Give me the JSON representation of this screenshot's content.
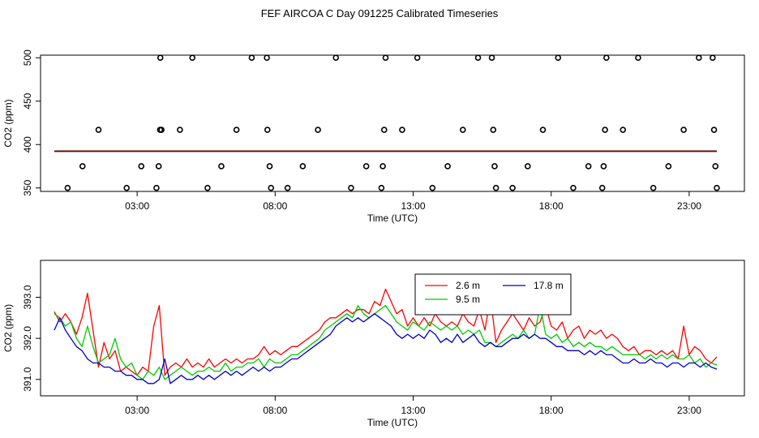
{
  "title": "FEF AIRCOA C  Day 091225  Calibrated Timeseries",
  "chart_data": [
    {
      "type": "scatter",
      "name": "top-panel",
      "xlabel": "Time (UTC)",
      "ylabel": "CO2 (ppm)",
      "xlim": [
        -0.5,
        25.0
      ],
      "ylim": [
        346,
        503
      ],
      "xticks": [
        3,
        8,
        13,
        18,
        23
      ],
      "xtick_labels": [
        "03:00",
        "08:00",
        "13:00",
        "18:00",
        "23:00"
      ],
      "yticks": [
        350,
        400,
        450,
        500
      ],
      "ytick_labels": [
        "350",
        "400",
        "450",
        "500"
      ],
      "points_x": [
        0.48,
        1.02,
        1.6,
        2.62,
        3.15,
        3.7,
        3.78,
        3.83,
        3.84,
        3.88,
        4.55,
        5.0,
        5.55,
        6.05,
        6.6,
        7.15,
        7.7,
        7.72,
        7.8,
        7.85,
        8.45,
        9.0,
        9.55,
        10.2,
        10.75,
        11.3,
        11.85,
        11.9,
        11.95,
        12.0,
        12.6,
        13.15,
        13.7,
        14.25,
        14.8,
        15.35,
        15.85,
        15.9,
        15.95,
        16.0,
        16.6,
        17.15,
        17.7,
        18.25,
        18.8,
        19.35,
        19.85,
        19.9,
        19.95,
        20.0,
        20.6,
        21.15,
        21.7,
        22.25,
        22.8,
        23.35,
        23.85,
        23.9,
        23.95,
        24.0
      ],
      "points_y": [
        350,
        375,
        417,
        350,
        375,
        350,
        375,
        417,
        500,
        417,
        417,
        500,
        350,
        375,
        417,
        500,
        500,
        417,
        375,
        350,
        350,
        375,
        417,
        500,
        350,
        375,
        350,
        375,
        417,
        500,
        417,
        500,
        350,
        375,
        417,
        500,
        500,
        417,
        375,
        350,
        350,
        375,
        417,
        500,
        350,
        375,
        350,
        375,
        417,
        500,
        417,
        500,
        350,
        375,
        417,
        500,
        500,
        417,
        375,
        350
      ],
      "series": [
        {
          "name": "2.6 m",
          "color": "#ff0000",
          "value": 392.8
        },
        {
          "name": "9.5 m",
          "color": "#00cc00",
          "value": 392.4
        },
        {
          "name": "17.8 m",
          "color": "#0000cc",
          "value": 392.0
        }
      ],
      "line_x_range": [
        0.0,
        24.0
      ]
    },
    {
      "type": "line",
      "name": "bottom-panel",
      "xlabel": "Time (UTC)",
      "ylabel": "CO2 (ppm)",
      "xlim": [
        -0.5,
        25.0
      ],
      "ylim": [
        390.6,
        393.9
      ],
      "xticks": [
        3,
        8,
        13,
        18,
        23
      ],
      "xtick_labels": [
        "03:00",
        "08:00",
        "13:00",
        "18:00",
        "23:00"
      ],
      "yticks": [
        391.0,
        392.0,
        393.0
      ],
      "ytick_labels": [
        "391.0",
        "392.0",
        "393.0"
      ],
      "legend": {
        "position": "top-center",
        "entries": [
          {
            "label": "2.6 m",
            "color": "#ff0000"
          },
          {
            "label": "9.5 m",
            "color": "#00cc00"
          },
          {
            "label": "17.8 m",
            "color": "#0000cc"
          }
        ]
      },
      "x": [
        0.0,
        0.2,
        0.4,
        0.6,
        0.8,
        1.0,
        1.2,
        1.4,
        1.6,
        1.8,
        2.0,
        2.2,
        2.4,
        2.6,
        2.8,
        3.0,
        3.2,
        3.4,
        3.6,
        3.8,
        4.0,
        4.2,
        4.4,
        4.6,
        4.8,
        5.0,
        5.2,
        5.4,
        5.6,
        5.8,
        6.0,
        6.2,
        6.4,
        6.6,
        6.8,
        7.0,
        7.2,
        7.4,
        7.6,
        7.8,
        8.0,
        8.2,
        8.4,
        8.6,
        8.8,
        9.0,
        9.2,
        9.4,
        9.6,
        9.8,
        10.0,
        10.2,
        10.4,
        10.6,
        10.8,
        11.0,
        11.2,
        11.4,
        11.6,
        11.8,
        12.0,
        12.2,
        12.4,
        12.6,
        12.8,
        13.0,
        13.2,
        13.4,
        13.6,
        13.8,
        14.0,
        14.2,
        14.4,
        14.6,
        14.8,
        15.0,
        15.2,
        15.4,
        15.6,
        15.8,
        16.0,
        16.2,
        16.4,
        16.6,
        16.8,
        17.0,
        17.2,
        17.4,
        17.6,
        17.8,
        18.0,
        18.2,
        18.4,
        18.6,
        18.8,
        19.0,
        19.2,
        19.4,
        19.6,
        19.8,
        20.0,
        20.2,
        20.4,
        20.6,
        20.8,
        21.0,
        21.2,
        21.4,
        21.6,
        21.8,
        22.0,
        22.2,
        22.4,
        22.6,
        22.8,
        23.0,
        23.2,
        23.4,
        23.6,
        23.8,
        24.0
      ],
      "series": [
        {
          "name": "2.6 m",
          "color": "#ff0000",
          "values": [
            392.65,
            392.4,
            392.6,
            392.4,
            392.1,
            392.5,
            393.1,
            392.2,
            391.3,
            391.9,
            391.5,
            391.7,
            391.2,
            391.3,
            391.2,
            391.1,
            391.3,
            391.2,
            392.3,
            392.8,
            391.1,
            391.3,
            391.4,
            391.3,
            391.5,
            391.3,
            391.4,
            391.3,
            391.5,
            391.3,
            391.4,
            391.5,
            391.4,
            391.5,
            391.4,
            391.5,
            391.5,
            391.6,
            391.8,
            391.6,
            391.7,
            391.6,
            391.7,
            391.8,
            391.8,
            391.9,
            392.0,
            392.1,
            392.2,
            392.4,
            392.5,
            392.5,
            392.6,
            392.7,
            392.6,
            392.7,
            392.7,
            392.6,
            392.9,
            392.8,
            393.2,
            392.9,
            392.6,
            392.7,
            392.3,
            392.5,
            392.3,
            392.5,
            392.3,
            392.6,
            392.4,
            392.3,
            392.4,
            392.3,
            392.6,
            392.4,
            392.3,
            392.7,
            392.2,
            393.0,
            391.9,
            392.2,
            392.4,
            392.6,
            392.4,
            392.2,
            392.5,
            392.3,
            392.4,
            392.8,
            392.3,
            392.2,
            392.4,
            392.0,
            392.2,
            392.3,
            392.0,
            392.2,
            392.1,
            392.2,
            392.0,
            392.1,
            392.0,
            391.8,
            391.7,
            391.8,
            391.6,
            391.7,
            391.7,
            391.6,
            391.7,
            391.6,
            391.7,
            391.5,
            392.3,
            391.6,
            391.8,
            391.7,
            391.5,
            391.4,
            391.55
          ]
        },
        {
          "name": "9.5 m",
          "color": "#00cc00",
          "values": [
            392.6,
            392.5,
            392.3,
            392.4,
            392.0,
            391.8,
            392.3,
            391.8,
            391.4,
            391.5,
            391.6,
            392.0,
            391.5,
            391.3,
            391.4,
            391.1,
            391.0,
            391.2,
            391.1,
            391.3,
            391.0,
            391.1,
            391.2,
            391.3,
            391.2,
            391.1,
            391.2,
            391.2,
            391.3,
            391.2,
            391.2,
            391.4,
            391.2,
            391.3,
            391.3,
            391.4,
            391.4,
            391.5,
            391.3,
            391.5,
            391.4,
            391.4,
            391.5,
            391.6,
            391.6,
            391.7,
            391.8,
            391.9,
            392.0,
            392.2,
            392.3,
            392.4,
            392.5,
            392.6,
            392.5,
            392.8,
            392.6,
            392.5,
            392.6,
            392.7,
            392.8,
            392.6,
            392.4,
            392.3,
            392.2,
            392.4,
            392.3,
            392.2,
            392.4,
            392.3,
            392.2,
            392.3,
            392.2,
            392.3,
            392.1,
            392.2,
            392.1,
            392.2,
            391.9,
            391.9,
            391.8,
            391.9,
            392.0,
            392.1,
            392.0,
            392.2,
            392.0,
            392.1,
            392.8,
            392.1,
            392.0,
            392.1,
            391.9,
            392.0,
            391.8,
            391.9,
            391.8,
            391.9,
            391.8,
            391.8,
            391.7,
            391.8,
            391.7,
            391.6,
            391.6,
            391.6,
            391.6,
            391.5,
            391.6,
            391.5,
            391.6,
            391.5,
            391.6,
            391.5,
            391.5,
            391.6,
            391.4,
            391.5,
            391.3,
            391.4,
            391.35
          ]
        },
        {
          "name": "17.8 m",
          "color": "#0000cc",
          "values": [
            392.2,
            392.5,
            392.2,
            392.0,
            391.8,
            391.7,
            391.5,
            391.4,
            391.4,
            391.3,
            391.3,
            391.2,
            391.2,
            391.1,
            391.1,
            391.0,
            391.0,
            390.9,
            390.9,
            391.0,
            391.5,
            390.9,
            391.0,
            391.1,
            391.0,
            391.0,
            391.1,
            391.0,
            391.1,
            391.0,
            391.1,
            391.2,
            391.1,
            391.2,
            391.1,
            391.2,
            391.3,
            391.2,
            391.3,
            391.2,
            391.3,
            391.3,
            391.4,
            391.5,
            391.5,
            391.6,
            391.7,
            391.8,
            391.9,
            392.0,
            392.1,
            392.3,
            392.4,
            392.5,
            392.4,
            392.5,
            392.4,
            392.5,
            392.6,
            392.5,
            392.4,
            392.3,
            392.1,
            392.0,
            392.1,
            392.0,
            392.1,
            392.0,
            392.2,
            392.1,
            391.9,
            392.0,
            391.9,
            392.1,
            391.9,
            392.0,
            392.1,
            391.9,
            391.8,
            391.9,
            391.8,
            391.8,
            391.9,
            392.0,
            392.0,
            392.1,
            392.0,
            392.1,
            392.0,
            392.0,
            391.9,
            391.8,
            391.8,
            391.7,
            391.7,
            391.7,
            391.6,
            391.7,
            391.6,
            391.7,
            391.6,
            391.6,
            391.5,
            391.4,
            391.4,
            391.5,
            391.4,
            391.4,
            391.5,
            391.4,
            391.4,
            391.3,
            391.4,
            391.4,
            391.3,
            391.4,
            391.4,
            391.3,
            391.4,
            391.3,
            391.25
          ]
        }
      ]
    }
  ]
}
